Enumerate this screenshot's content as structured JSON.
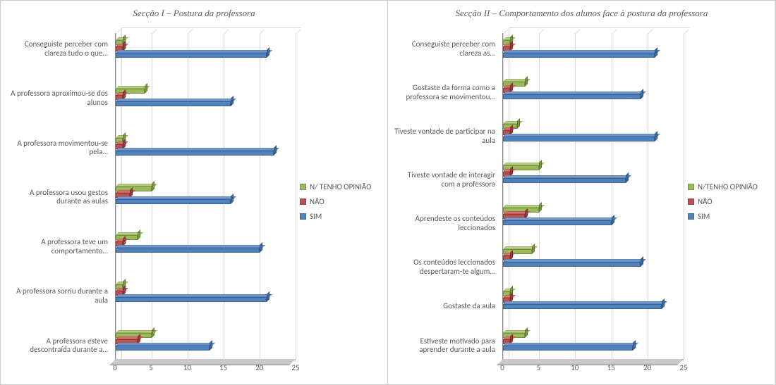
{
  "legend_labels": {
    "no_opinion": "N/ TENHO OPINIÃO",
    "no_opinion_alt": "N/TENHO OPINIÃO",
    "no": "NÃO",
    "yes": "SIM"
  },
  "colors": {
    "yes": "#4f81bd",
    "yes_top": "#6f9bd1",
    "yes_side": "#3a6aa3",
    "no": "#c0504d",
    "no_top": "#d4746f",
    "no_side": "#9e3b38",
    "no_opinion": "#9bbb59",
    "no_opinion_top": "#b6d07d",
    "no_opinion_side": "#7a9a3e",
    "grid": "#d9d9d9",
    "axis": "#868686",
    "floor": "#c9c9c9",
    "text": "#595959",
    "background": "#ffffff"
  },
  "axis": {
    "min": 0,
    "max": 25,
    "ticks": [
      0,
      5,
      10,
      15,
      20,
      25
    ]
  },
  "charts": [
    {
      "id": "chart1",
      "title": "Secção I – Postura da professora",
      "legend_no_opinion_key": "no_opinion",
      "categories": [
        {
          "label": "Conseguiste perceber com clareza tudo o que…",
          "yes": 21,
          "no": 1,
          "no_opinion": 1
        },
        {
          "label": "A professora aproximou-se dos alunos",
          "yes": 16,
          "no": 1,
          "no_opinion": 4
        },
        {
          "label": "A professora movimentou-se pela…",
          "yes": 22,
          "no": 1,
          "no_opinion": 1
        },
        {
          "label": "A  professora usou gestos durante as aulas",
          "yes": 16,
          "no": 2,
          "no_opinion": 5
        },
        {
          "label": "A professora teve um comportamento…",
          "yes": 20,
          "no": 1,
          "no_opinion": 3
        },
        {
          "label": "A professora sorriu durante a aula",
          "yes": 21,
          "no": 1,
          "no_opinion": 1
        },
        {
          "label": "A professora esteve descontraída durante a…",
          "yes": 13,
          "no": 3,
          "no_opinion": 5
        }
      ],
      "type": "bar3d-horizontal",
      "label_fontsize": 11
    },
    {
      "id": "chart2",
      "title": "Secção II – Comportamento dos alunos face à postura da professora",
      "legend_no_opinion_key": "no_opinion_alt",
      "categories": [
        {
          "label": "Conseguiste perceber com clareza as…",
          "yes": 21,
          "no": 1,
          "no_opinion": 1
        },
        {
          "label": "Gostaste da forma como a professora se movimentou…",
          "yes": 19,
          "no": 1,
          "no_opinion": 3
        },
        {
          "label": "Tiveste vontade de participar na aula",
          "yes": 21,
          "no": 1,
          "no_opinion": 2
        },
        {
          "label": "Tiveste vontade de interagir com a professora",
          "yes": 17,
          "no": 1,
          "no_opinion": 5
        },
        {
          "label": "Aprendeste os conteúdos leccionados",
          "yes": 15,
          "no": 3,
          "no_opinion": 5
        },
        {
          "label": "Os conteúdos leccionados despertaram-te algum…",
          "yes": 19,
          "no": 1,
          "no_opinion": 4
        },
        {
          "label": "Gostaste da aula",
          "yes": 22,
          "no": 1,
          "no_opinion": 1
        },
        {
          "label": "Estiveste motivado para aprender durante a aula",
          "yes": 18,
          "no": 1,
          "no_opinion": 3
        }
      ],
      "type": "bar3d-horizontal",
      "label_fontsize": 11
    }
  ]
}
